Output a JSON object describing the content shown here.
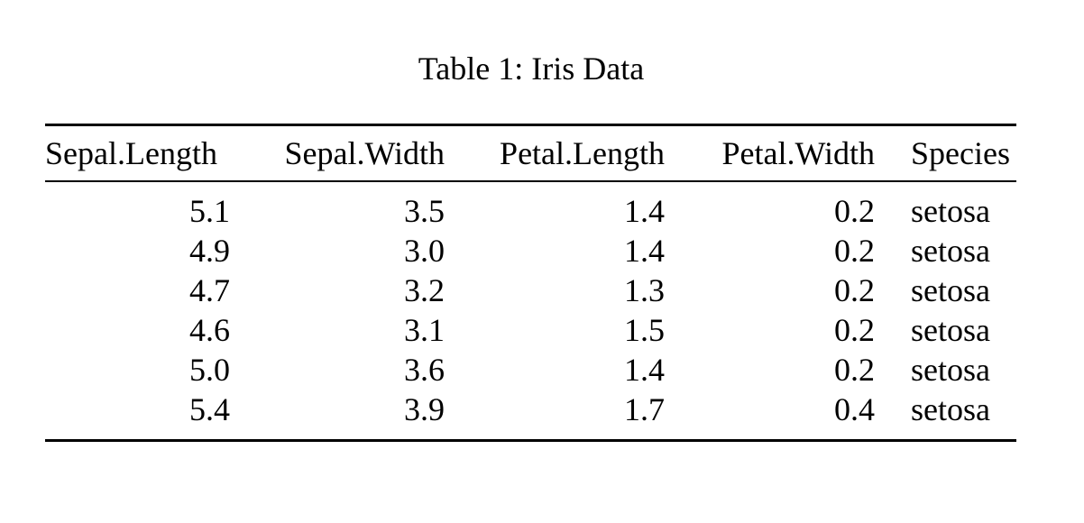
{
  "document": {
    "caption": "Table 1: Iris Data"
  },
  "table": {
    "columns": [
      {
        "id": "sepal-length",
        "label": "Sepal.Length",
        "align": "left"
      },
      {
        "id": "sepal-width",
        "label": "Sepal.Width",
        "align": "right"
      },
      {
        "id": "petal-length",
        "label": "Petal.Length",
        "align": "right"
      },
      {
        "id": "petal-width",
        "label": "Petal.Width",
        "align": "right"
      },
      {
        "id": "species",
        "label": "Species",
        "align": "left"
      }
    ],
    "rows": [
      [
        "5.1",
        "3.5",
        "1.4",
        "0.2",
        "setosa"
      ],
      [
        "4.9",
        "3.0",
        "1.4",
        "0.2",
        "setosa"
      ],
      [
        "4.7",
        "3.2",
        "1.3",
        "0.2",
        "setosa"
      ],
      [
        "4.6",
        "3.1",
        "1.5",
        "0.2",
        "setosa"
      ],
      [
        "5.0",
        "3.6",
        "1.4",
        "0.2",
        "setosa"
      ],
      [
        "5.4",
        "3.9",
        "1.7",
        "0.4",
        "setosa"
      ]
    ]
  },
  "chart_data": {
    "type": "table",
    "title": "Table 1: Iris Data",
    "columns": [
      "Sepal.Length",
      "Sepal.Width",
      "Petal.Length",
      "Petal.Width",
      "Species"
    ],
    "rows": [
      [
        5.1,
        3.5,
        1.4,
        0.2,
        "setosa"
      ],
      [
        4.9,
        3.0,
        1.4,
        0.2,
        "setosa"
      ],
      [
        4.7,
        3.2,
        1.3,
        0.2,
        "setosa"
      ],
      [
        4.6,
        3.1,
        1.5,
        0.2,
        "setosa"
      ],
      [
        5.0,
        3.6,
        1.4,
        0.2,
        "setosa"
      ],
      [
        5.4,
        3.9,
        1.7,
        0.4,
        "setosa"
      ]
    ]
  },
  "colors": {
    "text": "#000000",
    "background": "#ffffff",
    "rule": "#000000"
  }
}
